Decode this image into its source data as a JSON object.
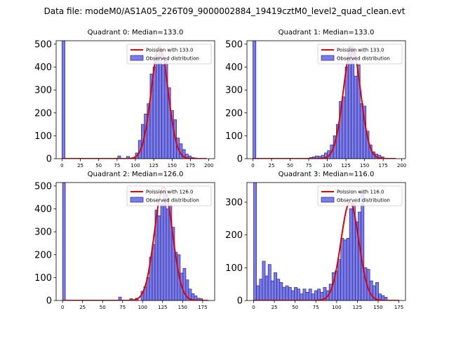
{
  "figure": {
    "suptitle": "Data file: modeM0/AS1A05_226T09_9000002884_19419cztM0_level2_quad_clean.evt",
    "colors": {
      "bar_fill": "#7b7bea",
      "bar_edge": "#26268c",
      "fit_line": "#e50000",
      "axes": "#000000"
    }
  },
  "chart_data": [
    {
      "type": "bar",
      "title": "Quadrant 0: Median=133.0",
      "xlim": [
        -8,
        208
      ],
      "ylim": [
        0,
        515
      ],
      "xticks": [
        0,
        25,
        50,
        75,
        100,
        125,
        150,
        175,
        200
      ],
      "yticks": [
        0,
        100,
        200,
        300,
        400,
        500
      ],
      "bin_width": 4,
      "legend": [
        "Poission with 133.0",
        "Observed distribution"
      ],
      "hist_bins": [
        [
          0,
          515
        ],
        [
          76,
          12
        ],
        [
          88,
          10
        ],
        [
          96,
          5
        ],
        [
          100,
          25
        ],
        [
          104,
          80
        ],
        [
          108,
          150
        ],
        [
          112,
          195
        ],
        [
          116,
          240
        ],
        [
          120,
          370
        ],
        [
          124,
          400
        ],
        [
          128,
          450
        ],
        [
          132,
          480
        ],
        [
          136,
          410
        ],
        [
          140,
          430
        ],
        [
          144,
          310
        ],
        [
          148,
          210
        ],
        [
          152,
          170
        ],
        [
          156,
          90
        ],
        [
          160,
          65
        ],
        [
          164,
          40
        ],
        [
          168,
          20
        ],
        [
          172,
          12
        ],
        [
          176,
          5
        ],
        [
          180,
          3
        ]
      ],
      "fit": {
        "mean": 133.0,
        "amplitude": 490,
        "x_from": 0,
        "x_to": 197
      }
    },
    {
      "type": "bar",
      "title": "Quadrant 1: Median=133.0",
      "xlim": [
        -8,
        205
      ],
      "ylim": [
        0,
        515
      ],
      "xticks": [
        0,
        25,
        50,
        75,
        100,
        125,
        150,
        175,
        200
      ],
      "yticks": [
        0,
        100,
        200,
        300,
        400,
        500
      ],
      "bin_width": 4,
      "legend": [
        "Poission with 133.0",
        "Observed distribution"
      ],
      "hist_bins": [
        [
          0,
          515
        ],
        [
          76,
          5
        ],
        [
          80,
          8
        ],
        [
          84,
          12
        ],
        [
          88,
          10
        ],
        [
          92,
          15
        ],
        [
          96,
          25
        ],
        [
          100,
          35
        ],
        [
          104,
          60
        ],
        [
          108,
          100
        ],
        [
          112,
          150
        ],
        [
          116,
          250
        ],
        [
          120,
          270
        ],
        [
          124,
          400
        ],
        [
          128,
          490
        ],
        [
          132,
          480
        ],
        [
          136,
          360
        ],
        [
          140,
          410
        ],
        [
          144,
          240
        ],
        [
          148,
          230
        ],
        [
          152,
          120
        ],
        [
          156,
          60
        ],
        [
          160,
          30
        ],
        [
          164,
          20
        ],
        [
          168,
          15
        ],
        [
          172,
          8
        ]
      ],
      "fit": {
        "mean": 133.0,
        "amplitude": 490,
        "x_from": 0,
        "x_to": 192
      }
    },
    {
      "type": "bar",
      "title": "Quadrant 2: Median=126.0",
      "xlim": [
        -8,
        190
      ],
      "ylim": [
        0,
        515
      ],
      "xticks": [
        0,
        25,
        50,
        75,
        100,
        125,
        150,
        175
      ],
      "yticks": [
        0,
        100,
        200,
        300,
        400,
        500
      ],
      "bin_width": 3.5,
      "legend": [
        "Poission with 126.0",
        "Observed distribution"
      ],
      "hist_bins": [
        [
          0,
          515
        ],
        [
          70,
          15
        ],
        [
          84,
          8
        ],
        [
          91,
          10
        ],
        [
          98,
          40
        ],
        [
          101.5,
          60
        ],
        [
          105,
          100
        ],
        [
          108.5,
          190
        ],
        [
          112,
          245
        ],
        [
          115.5,
          395
        ],
        [
          119,
          370
        ],
        [
          122.5,
          420
        ],
        [
          126,
          480
        ],
        [
          129.5,
          400
        ],
        [
          133,
          420
        ],
        [
          136.5,
          320
        ],
        [
          140,
          210
        ],
        [
          143.5,
          200
        ],
        [
          147,
          120
        ],
        [
          150.5,
          140
        ],
        [
          154,
          90
        ],
        [
          157.5,
          50
        ],
        [
          161,
          30
        ],
        [
          164.5,
          20
        ],
        [
          168,
          10
        ],
        [
          171.5,
          8
        ]
      ],
      "fit": {
        "mean": 126.0,
        "amplitude": 495,
        "x_from": 0,
        "x_to": 182
      }
    },
    {
      "type": "bar",
      "title": "Quadrant 3: Median=116.0",
      "xlim": [
        -8,
        183
      ],
      "ylim": [
        0,
        360
      ],
      "xticks": [
        0,
        25,
        50,
        75,
        100,
        125,
        150,
        175
      ],
      "yticks": [
        0,
        100,
        200,
        300
      ],
      "bin_width": 3.5,
      "legend": [
        "Poission with 116.0",
        "Observed distribution"
      ],
      "hist_bins": [
        [
          0,
          360
        ],
        [
          3.5,
          45
        ],
        [
          7,
          65
        ],
        [
          10.5,
          120
        ],
        [
          14,
          75
        ],
        [
          17.5,
          110
        ],
        [
          21,
          60
        ],
        [
          24.5,
          85
        ],
        [
          28,
          65
        ],
        [
          31.5,
          55
        ],
        [
          35,
          40
        ],
        [
          38.5,
          45
        ],
        [
          42,
          40
        ],
        [
          45.5,
          30
        ],
        [
          49,
          40
        ],
        [
          52.5,
          35
        ],
        [
          56,
          20
        ],
        [
          59.5,
          35
        ],
        [
          63,
          25
        ],
        [
          66.5,
          35
        ],
        [
          70,
          20
        ],
        [
          73.5,
          30
        ],
        [
          77,
          35
        ],
        [
          80.5,
          25
        ],
        [
          84,
          40
        ],
        [
          87.5,
          30
        ],
        [
          91,
          50
        ],
        [
          94.5,
          85
        ],
        [
          98,
          90
        ],
        [
          101.5,
          125
        ],
        [
          105,
          190
        ],
        [
          108.5,
          185
        ],
        [
          112,
          190
        ],
        [
          115.5,
          280
        ],
        [
          119,
          300
        ],
        [
          122.5,
          240
        ],
        [
          126,
          270
        ],
        [
          129.5,
          330
        ],
        [
          133,
          100
        ],
        [
          136.5,
          95
        ],
        [
          140,
          60
        ],
        [
          143.5,
          45
        ],
        [
          147,
          55
        ],
        [
          150.5,
          20
        ],
        [
          154,
          15
        ],
        [
          157.5,
          10
        ]
      ],
      "fit": {
        "mean": 116.0,
        "amplitude": 300,
        "x_from": 0,
        "x_to": 175
      }
    }
  ]
}
